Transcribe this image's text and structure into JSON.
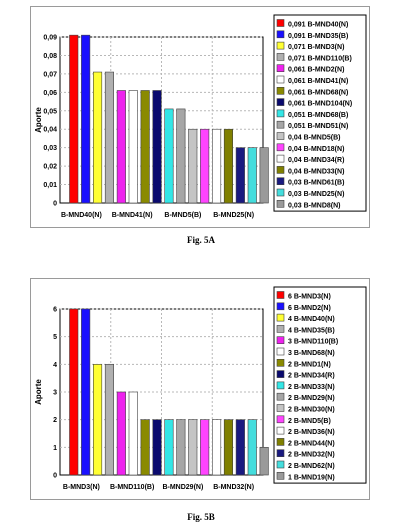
{
  "charts": [
    {
      "type": "bar",
      "ylabel": "Aporte",
      "ylim": [
        0,
        0.09
      ],
      "yticks": [
        "0",
        "0,01",
        "0,02",
        "0,03",
        "0,04",
        "0,05",
        "0,06",
        "0,07",
        "0,08",
        "0,09"
      ],
      "xlabels": [
        "B-MND40(N)",
        "B-MND41(N)",
        "B-MND5(B)",
        "B-MND25(N)"
      ],
      "caption": "Fig. 5A",
      "legend": [
        {
          "label": "0,091 B-MND40(N)",
          "color": "#ff0000",
          "value": 0.091
        },
        {
          "label": "0,091 B-MND35(B)",
          "color": "#1a10ff",
          "value": 0.091
        },
        {
          "label": "0,071 B-MND3(N)",
          "color": "#ffff33",
          "value": 0.071
        },
        {
          "label": "0,071 B-MND110(B)",
          "color": "#b0b0b0",
          "value": 0.071
        },
        {
          "label": "0,061 B-MND2(N)",
          "color": "#ee22ee",
          "value": 0.061
        },
        {
          "label": "0,061 B-MND41(N)",
          "color": "#ffffff",
          "value": 0.061
        },
        {
          "label": "0,061 B-MND68(N)",
          "color": "#8a8a00",
          "value": 0.061
        },
        {
          "label": "0,061 B-MND104(N)",
          "color": "#0a0a6e",
          "value": 0.061
        },
        {
          "label": "0,051 B-MND68(B)",
          "color": "#33e6e6",
          "value": 0.051
        },
        {
          "label": "0,051 B-MND51(N)",
          "color": "#a6a6a6",
          "value": 0.051
        },
        {
          "label": "0,04 B-MND5(B)",
          "color": "#c4c4c4",
          "value": 0.04
        },
        {
          "label": "0,04 B-MND18(N)",
          "color": "#ff44ff",
          "value": 0.04
        },
        {
          "label": "0,04 B-MND34(R)",
          "color": "#ffffff",
          "value": 0.04
        },
        {
          "label": "0,04 B-MND33(N)",
          "color": "#808000",
          "value": 0.04
        },
        {
          "label": "0,03 B-MND61(B)",
          "color": "#1a1a80",
          "value": 0.03
        },
        {
          "label": "0,03 B-MND25(N)",
          "color": "#44dddd",
          "value": 0.03
        },
        {
          "label": "0,03 B-MND8(N)",
          "color": "#9a9a9a",
          "value": 0.03
        }
      ]
    },
    {
      "type": "bar",
      "ylabel": "Aporte",
      "ylim": [
        0,
        6
      ],
      "yticks": [
        "0",
        "1",
        "2",
        "3",
        "4",
        "5",
        "6"
      ],
      "xlabels": [
        "B-MND3(N)",
        "B-MND110(B)",
        "B-MND29(N)",
        "B-MND32(N)"
      ],
      "caption": "Fig. 5B",
      "legend": [
        {
          "label": "6 B-MND3(N)",
          "color": "#ff0000",
          "value": 6
        },
        {
          "label": "6 B-MND2(N)",
          "color": "#1a10ff",
          "value": 6
        },
        {
          "label": "4 B-MND40(N)",
          "color": "#ffff33",
          "value": 4
        },
        {
          "label": "4 B-MND35(B)",
          "color": "#b0b0b0",
          "value": 4
        },
        {
          "label": "3 B-MND110(B)",
          "color": "#ee22ee",
          "value": 3
        },
        {
          "label": "3 B-MND68(N)",
          "color": "#ffffff",
          "value": 3
        },
        {
          "label": "2 B-MND1(N)",
          "color": "#8a8a00",
          "value": 2
        },
        {
          "label": "2 B-MND34(R)",
          "color": "#0a0a6e",
          "value": 2
        },
        {
          "label": "2 B-MND33(N)",
          "color": "#33e6e6",
          "value": 2
        },
        {
          "label": "2 B-MND29(N)",
          "color": "#a6a6a6",
          "value": 2
        },
        {
          "label": "2 B-MND30(N)",
          "color": "#c4c4c4",
          "value": 2
        },
        {
          "label": "2 B-MND5(B)",
          "color": "#ff44ff",
          "value": 2
        },
        {
          "label": "2 B-MND36(N)",
          "color": "#ffffff",
          "value": 2
        },
        {
          "label": "2 B-MND44(N)",
          "color": "#808000",
          "value": 2
        },
        {
          "label": "2 B-MND32(N)",
          "color": "#1a1a80",
          "value": 2
        },
        {
          "label": "2 B-MND62(N)",
          "color": "#44dddd",
          "value": 2
        },
        {
          "label": "1 B-MND19(N)",
          "color": "#9a9a9a",
          "value": 1
        }
      ]
    }
  ],
  "chart_data": [
    {
      "type": "bar",
      "title": "",
      "xlabel": "",
      "ylabel": "Aporte",
      "ylim": [
        0,
        0.09
      ],
      "grid": true,
      "legend_position": "right",
      "categories": [
        "B-MND40(N)",
        "B-MND35(B)",
        "B-MND3(N)",
        "B-MND110(B)",
        "B-MND2(N)",
        "B-MND41(N)",
        "B-MND68(N)",
        "B-MND104(N)",
        "B-MND68(B)",
        "B-MND51(N)",
        "B-MND5(B)",
        "B-MND18(N)",
        "B-MND34(R)",
        "B-MND33(N)",
        "B-MND61(B)",
        "B-MND25(N)",
        "B-MND8(N)"
      ],
      "values": [
        0.091,
        0.091,
        0.071,
        0.071,
        0.061,
        0.061,
        0.061,
        0.061,
        0.051,
        0.051,
        0.04,
        0.04,
        0.04,
        0.04,
        0.03,
        0.03,
        0.03
      ]
    },
    {
      "type": "bar",
      "title": "",
      "xlabel": "",
      "ylabel": "Aporte",
      "ylim": [
        0,
        6
      ],
      "grid": true,
      "legend_position": "right",
      "categories": [
        "B-MND3(N)",
        "B-MND2(N)",
        "B-MND40(N)",
        "B-MND35(B)",
        "B-MND110(B)",
        "B-MND68(N)",
        "B-MND1(N)",
        "B-MND34(R)",
        "B-MND33(N)",
        "B-MND29(N)",
        "B-MND30(N)",
        "B-MND5(B)",
        "B-MND36(N)",
        "B-MND44(N)",
        "B-MND32(N)",
        "B-MND62(N)",
        "B-MND19(N)"
      ],
      "values": [
        6,
        6,
        4,
        4,
        3,
        3,
        2,
        2,
        2,
        2,
        2,
        2,
        2,
        2,
        2,
        2,
        1
      ]
    }
  ]
}
